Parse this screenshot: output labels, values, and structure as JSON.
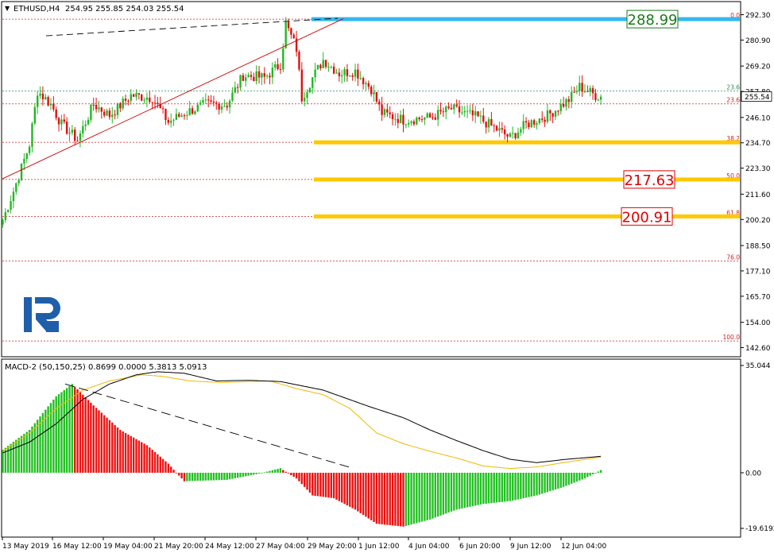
{
  "main": {
    "symbol_label": "ETHUSD,H4",
    "ohlc": "254.95 255.85 254.03 255.54",
    "current_price": "255.54",
    "y_ticks": [
      "292.30",
      "280.90",
      "269.20",
      "257.80",
      "246.10",
      "234.70",
      "223.30",
      "211.60",
      "200.20",
      "188.50",
      "177.10",
      "165.70",
      "154.00",
      "142.60"
    ],
    "fib_labels": [
      "0.0",
      "23.6",
      "23.6",
      "38.2",
      "50.0",
      "61.8",
      "76.0",
      "100.0"
    ],
    "fib_values": [
      290.3,
      258.0,
      252.2,
      234.9,
      218.2,
      201.6,
      181.5,
      145.6
    ],
    "callouts": [
      {
        "text": "288.99",
        "color": "#1a7a1a"
      },
      {
        "text": "217.63",
        "color": "#e00000"
      },
      {
        "text": "200.91",
        "color": "#e00000"
      }
    ]
  },
  "macd": {
    "label": "MACD-2 (50,150,25) 0.8699 0.0000 5.3813 5.0913",
    "y_ticks": [
      "35.044",
      "0.00",
      "-19.6192"
    ]
  },
  "x_ticks": [
    "13 May 2019",
    "16 May 12:00",
    "19 May 04:00",
    "21 May 20:00",
    "24 May 12:00",
    "27 May 04:00",
    "29 May 20:00",
    "1 Jun 12:00",
    "4 Jun 04:00",
    "6 Jun 20:00",
    "9 Jun 12:00",
    "12 Jun 04:00"
  ],
  "chart_data": [
    {
      "type": "candlestick",
      "title": "ETHUSD,H4",
      "ylim": [
        142.6,
        297.0
      ],
      "x_start": "13 May 2019 00:00",
      "bar_interval_hours": 4,
      "close_path": [
        [
          0,
          200
        ],
        [
          4,
          213
        ],
        [
          10,
          234
        ],
        [
          13,
          258
        ],
        [
          18,
          252
        ],
        [
          22,
          243
        ],
        [
          28,
          236
        ],
        [
          34,
          252
        ],
        [
          40,
          247
        ],
        [
          48,
          256
        ],
        [
          56,
          255
        ],
        [
          62,
          244
        ],
        [
          68,
          248
        ],
        [
          76,
          252
        ],
        [
          84,
          252
        ],
        [
          90,
          265
        ],
        [
          98,
          264
        ],
        [
          104,
          270
        ],
        [
          106,
          288
        ],
        [
          110,
          277
        ],
        [
          112,
          255
        ],
        [
          116,
          264
        ],
        [
          120,
          272
        ],
        [
          126,
          266
        ],
        [
          132,
          267
        ],
        [
          138,
          259
        ],
        [
          142,
          248
        ],
        [
          150,
          245
        ],
        [
          160,
          246
        ],
        [
          168,
          250
        ],
        [
          178,
          246
        ],
        [
          186,
          240
        ],
        [
          190,
          237
        ],
        [
          196,
          243
        ],
        [
          204,
          247
        ],
        [
          212,
          254
        ],
        [
          216,
          260
        ],
        [
          222,
          256
        ],
        [
          224,
          255.5
        ]
      ]
    },
    {
      "type": "macd",
      "title": "MACD-2 (50,150,25)",
      "ylim": [
        -19.6192,
        35.044
      ],
      "histogram": [
        [
          0,
          7.5
        ],
        [
          10,
          14
        ],
        [
          20,
          25
        ],
        [
          26,
          29
        ],
        [
          34,
          22
        ],
        [
          44,
          14
        ],
        [
          54,
          9
        ],
        [
          62,
          3
        ],
        [
          68,
          -3
        ],
        [
          84,
          -2.5
        ],
        [
          96,
          -0.3
        ],
        [
          104,
          1.5
        ],
        [
          110,
          -2
        ],
        [
          116,
          -8
        ],
        [
          124,
          -9
        ],
        [
          132,
          -13
        ],
        [
          140,
          -18
        ],
        [
          150,
          -19
        ],
        [
          160,
          -16.5
        ],
        [
          170,
          -13
        ],
        [
          180,
          -11
        ],
        [
          190,
          -10
        ],
        [
          200,
          -8
        ],
        [
          210,
          -5
        ],
        [
          218,
          -2
        ],
        [
          224,
          0.87
        ]
      ],
      "signal": [
        [
          0,
          7
        ],
        [
          10,
          13
        ],
        [
          20,
          21
        ],
        [
          30,
          27
        ],
        [
          40,
          30
        ],
        [
          52,
          32
        ],
        [
          60,
          31.5
        ],
        [
          70,
          30
        ],
        [
          82,
          29.5
        ],
        [
          100,
          30
        ],
        [
          110,
          27.5
        ],
        [
          120,
          25.5
        ],
        [
          130,
          21
        ],
        [
          140,
          13
        ],
        [
          150,
          9.5
        ],
        [
          160,
          7
        ],
        [
          170,
          4.8
        ],
        [
          180,
          2.2
        ],
        [
          190,
          1.4
        ],
        [
          200,
          1.9
        ],
        [
          210,
          3.3
        ],
        [
          224,
          5.1
        ]
      ],
      "macd_line": [
        [
          0,
          6.5
        ],
        [
          10,
          10
        ],
        [
          20,
          16
        ],
        [
          30,
          24
        ],
        [
          40,
          29
        ],
        [
          50,
          32
        ],
        [
          58,
          33
        ],
        [
          68,
          32.5
        ],
        [
          80,
          30
        ],
        [
          92,
          30.2
        ],
        [
          104,
          29.8
        ],
        [
          120,
          27
        ],
        [
          136,
          22
        ],
        [
          150,
          18
        ],
        [
          160,
          14
        ],
        [
          170,
          10.5
        ],
        [
          180,
          7.2
        ],
        [
          190,
          4.4
        ],
        [
          200,
          3.3
        ],
        [
          210,
          4.3
        ],
        [
          224,
          5.38
        ]
      ]
    }
  ]
}
